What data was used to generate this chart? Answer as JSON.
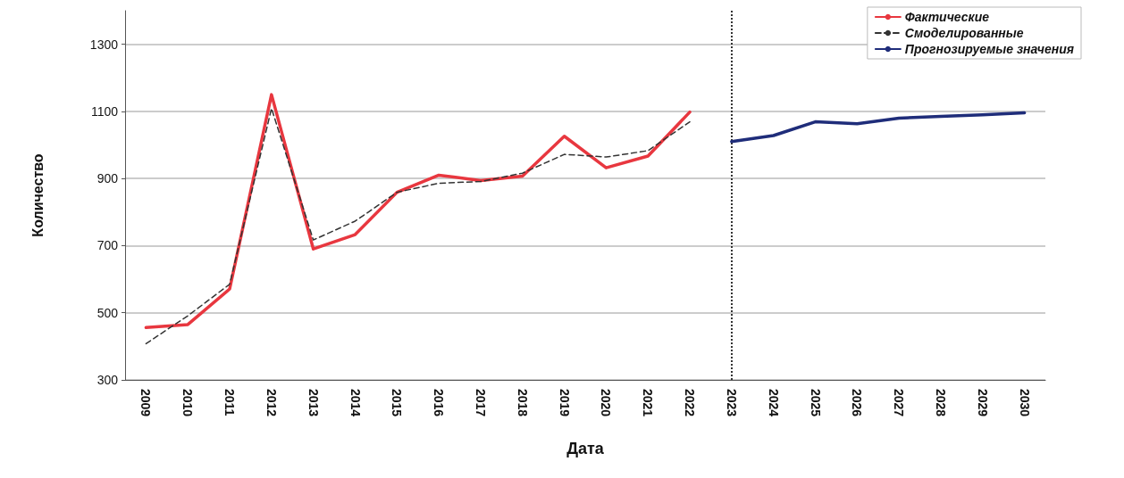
{
  "chart_data": {
    "type": "line",
    "xlabel": "Дата",
    "ylabel": "Количество",
    "categories": [
      "2009",
      "2010",
      "2011",
      "2012",
      "2013",
      "2014",
      "2015",
      "2016",
      "2017",
      "2018",
      "2019",
      "2020",
      "2021",
      "2022",
      "2023",
      "2024",
      "2025",
      "2026",
      "2027",
      "2028",
      "2029",
      "2030"
    ],
    "series": [
      {
        "name": "Фактические",
        "color": "#e8373f",
        "line_style": "solid",
        "values": [
          456,
          465,
          571,
          1150,
          690,
          733,
          859,
          910,
          894,
          907,
          1026,
          932,
          967,
          1098,
          null,
          null,
          null,
          null,
          null,
          null,
          null,
          null
        ]
      },
      {
        "name": "Смоделированные",
        "color": "#333333",
        "line_style": "dashed",
        "values": [
          408,
          491,
          585,
          1109,
          717,
          773,
          859,
          886,
          891,
          916,
          972,
          964,
          983,
          1069,
          null,
          null,
          null,
          null,
          null,
          null,
          null,
          null
        ]
      },
      {
        "name": "Прогнозируемые значения",
        "color": "#1f2d7a",
        "line_style": "solid",
        "values": [
          null,
          null,
          null,
          null,
          null,
          null,
          null,
          null,
          null,
          null,
          null,
          null,
          null,
          null,
          1010,
          1028,
          1069,
          1063,
          1080,
          1085,
          1090,
          1096
        ]
      }
    ],
    "ylim": [
      300,
      1400
    ],
    "yticks": [
      300,
      500,
      700,
      900,
      1100,
      1300
    ],
    "grid": "y",
    "legend": "top right",
    "marker": "none",
    "ref_lines": [
      {
        "axis": "x",
        "value": "2023",
        "color": "#333333",
        "line_style": "dotted"
      }
    ]
  }
}
